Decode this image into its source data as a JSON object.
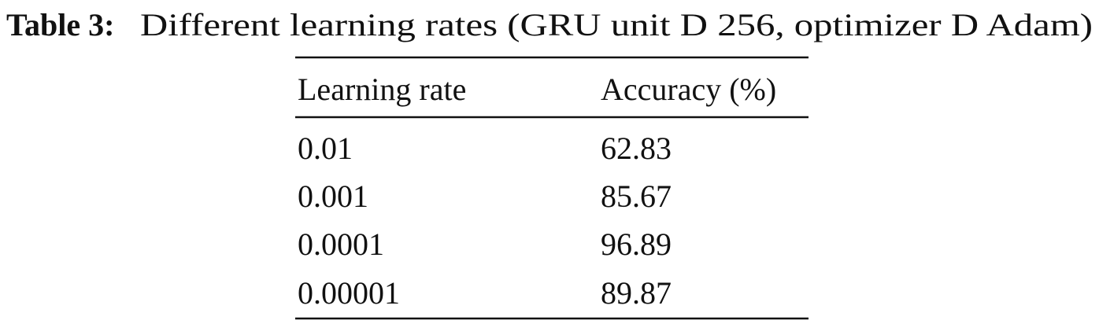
{
  "caption": {
    "label": "Table 3:",
    "text": "Different learning rates (GRU unit D 256, optimizer D Adam)"
  },
  "table": {
    "header": [
      "Learning rate",
      "Accuracy (%)"
    ],
    "rows": [
      [
        "0.01",
        "62.83"
      ],
      [
        "0.001",
        "85.67"
      ],
      [
        "0.0001",
        "96.89"
      ],
      [
        "0.00001",
        "89.87"
      ]
    ]
  }
}
